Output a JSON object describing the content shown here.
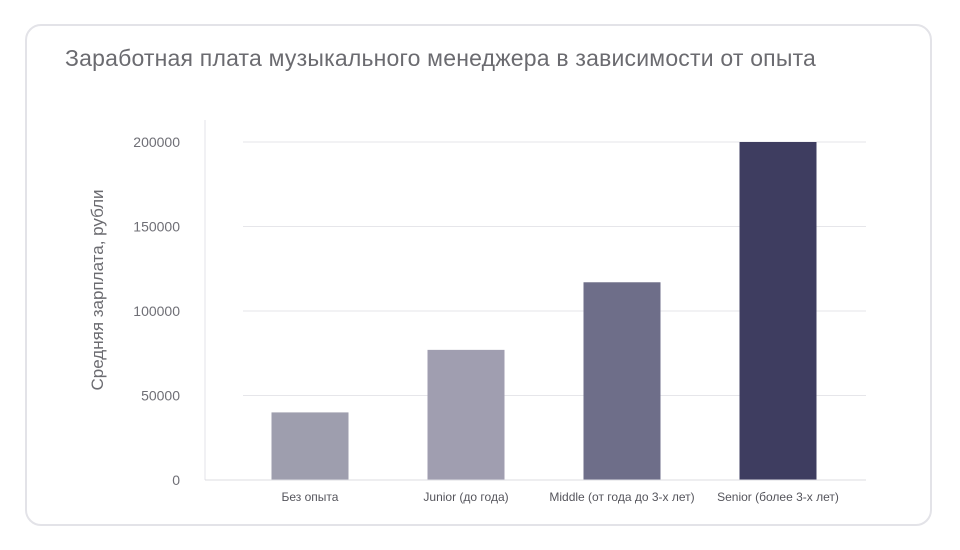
{
  "chart_data": {
    "type": "bar",
    "title": "Заработная плата музыкального менеджера в зависимости от опыта",
    "xlabel": "",
    "ylabel": "Средняя зарплата, рубли",
    "categories": [
      "Без опыта",
      "Junior (до года)",
      "Middle (от года до 3-х лет)",
      "Senior (более 3-х лет)"
    ],
    "values": [
      40000,
      77000,
      117000,
      200000
    ],
    "ylim": [
      0,
      210000
    ],
    "yticks": [
      0,
      50000,
      100000,
      150000,
      200000
    ],
    "colors": [
      "#9e9eae",
      "#a09eb0",
      "#6e6e89",
      "#3e3d60"
    ],
    "grid": true,
    "legend": "none"
  }
}
